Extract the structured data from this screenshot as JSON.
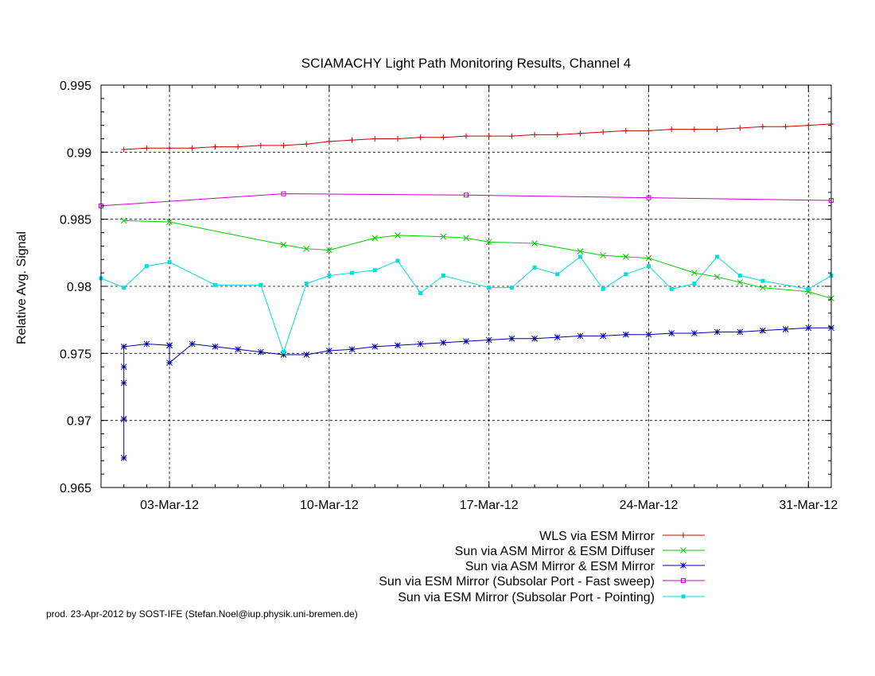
{
  "chart_data": {
    "type": "line",
    "title": "SCIAMACHY Light Path Monitoring Results, Channel 4",
    "xlabel": "",
    "ylabel": "Relative Avg. Signal",
    "xlim": [
      "2012-02-29",
      "2012-04-01"
    ],
    "ylim": [
      0.965,
      0.995
    ],
    "yticks": [
      "0.965",
      "0.97",
      "0.975",
      "0.98",
      "0.985",
      "0.99",
      "0.995"
    ],
    "xticks": [
      {
        "date": "2012-03-03",
        "label": "03-Mar-12"
      },
      {
        "date": "2012-03-10",
        "label": "10-Mar-12"
      },
      {
        "date": "2012-03-17",
        "label": "17-Mar-12"
      },
      {
        "date": "2012-03-24",
        "label": "24-Mar-12"
      },
      {
        "date": "2012-03-31",
        "label": "31-Mar-12"
      }
    ],
    "grid": true,
    "legend_position": "bottom-right",
    "series": [
      {
        "name": "WLS via ESM Mirror",
        "color": "#cc0000",
        "marker": "plus",
        "points": [
          [
            "2012-03-01",
            0.9902
          ],
          [
            "2012-03-02",
            0.9903
          ],
          [
            "2012-03-03",
            0.9903
          ],
          [
            "2012-03-04",
            0.9903
          ],
          [
            "2012-03-05",
            0.9904
          ],
          [
            "2012-03-06",
            0.9904
          ],
          [
            "2012-03-07",
            0.9905
          ],
          [
            "2012-03-08",
            0.9905
          ],
          [
            "2012-03-09",
            0.9906
          ],
          [
            "2012-03-10",
            0.9908
          ],
          [
            "2012-03-11",
            0.9909
          ],
          [
            "2012-03-12",
            0.991
          ],
          [
            "2012-03-13",
            0.991
          ],
          [
            "2012-03-14",
            0.9911
          ],
          [
            "2012-03-15",
            0.9911
          ],
          [
            "2012-03-16",
            0.9912
          ],
          [
            "2012-03-17",
            0.9912
          ],
          [
            "2012-03-18",
            0.9912
          ],
          [
            "2012-03-19",
            0.9913
          ],
          [
            "2012-03-20",
            0.9913
          ],
          [
            "2012-03-21",
            0.9914
          ],
          [
            "2012-03-22",
            0.9915
          ],
          [
            "2012-03-23",
            0.9916
          ],
          [
            "2012-03-24",
            0.9916
          ],
          [
            "2012-03-25",
            0.9917
          ],
          [
            "2012-03-26",
            0.9917
          ],
          [
            "2012-03-27",
            0.9917
          ],
          [
            "2012-03-28",
            0.9918
          ],
          [
            "2012-03-29",
            0.9919
          ],
          [
            "2012-03-30",
            0.9919
          ],
          [
            "2012-03-31",
            0.992
          ],
          [
            "2012-04-01",
            0.9921
          ]
        ]
      },
      {
        "name": "Sun via ASM Mirror & ESM Diffuser",
        "color": "#00cc00",
        "marker": "x",
        "points": [
          [
            "2012-03-01",
            0.9849
          ],
          [
            "2012-03-03",
            0.9848
          ],
          [
            "2012-03-08",
            0.9831
          ],
          [
            "2012-03-09",
            0.9828
          ],
          [
            "2012-03-10",
            0.9827
          ],
          [
            "2012-03-12",
            0.9836
          ],
          [
            "2012-03-13",
            0.9838
          ],
          [
            "2012-03-15",
            0.9837
          ],
          [
            "2012-03-16",
            0.9836
          ],
          [
            "2012-03-17",
            0.9833
          ],
          [
            "2012-03-19",
            0.9832
          ],
          [
            "2012-03-21",
            0.9826
          ],
          [
            "2012-03-22",
            0.9823
          ],
          [
            "2012-03-23",
            0.9822
          ],
          [
            "2012-03-24",
            0.9821
          ],
          [
            "2012-03-26",
            0.981
          ],
          [
            "2012-03-27",
            0.9807
          ],
          [
            "2012-03-28",
            0.9803
          ],
          [
            "2012-03-29",
            0.9799
          ],
          [
            "2012-03-31",
            0.9796
          ],
          [
            "2012-04-01",
            0.9791
          ]
        ]
      },
      {
        "name": "Sun via ASM Mirror & ESM Mirror",
        "color": "#0000aa",
        "marker": "star",
        "points": [
          [
            "2012-03-01",
            0.974
          ],
          [
            "2012-03-01",
            0.9728
          ],
          [
            "2012-03-01",
            0.9701
          ],
          [
            "2012-03-01",
            0.9672
          ],
          [
            "2012-03-01",
            0.9755
          ],
          [
            "2012-03-02",
            0.9757
          ],
          [
            "2012-03-03",
            0.9756
          ],
          [
            "2012-03-03",
            0.9756
          ],
          [
            "2012-03-03",
            0.9743
          ],
          [
            "2012-03-04",
            0.9757
          ],
          [
            "2012-03-05",
            0.9755
          ],
          [
            "2012-03-06",
            0.9753
          ],
          [
            "2012-03-07",
            0.9751
          ],
          [
            "2012-03-08",
            0.9749
          ],
          [
            "2012-03-09",
            0.9749
          ],
          [
            "2012-03-10",
            0.9752
          ],
          [
            "2012-03-11",
            0.9753
          ],
          [
            "2012-03-12",
            0.9755
          ],
          [
            "2012-03-13",
            0.9756
          ],
          [
            "2012-03-14",
            0.9757
          ],
          [
            "2012-03-15",
            0.9758
          ],
          [
            "2012-03-16",
            0.9759
          ],
          [
            "2012-03-17",
            0.976
          ],
          [
            "2012-03-18",
            0.9761
          ],
          [
            "2012-03-19",
            0.9761
          ],
          [
            "2012-03-20",
            0.9762
          ],
          [
            "2012-03-21",
            0.9763
          ],
          [
            "2012-03-22",
            0.9763
          ],
          [
            "2012-03-23",
            0.9764
          ],
          [
            "2012-03-24",
            0.9764
          ],
          [
            "2012-03-25",
            0.9765
          ],
          [
            "2012-03-26",
            0.9765
          ],
          [
            "2012-03-27",
            0.9766
          ],
          [
            "2012-03-28",
            0.9766
          ],
          [
            "2012-03-29",
            0.9767
          ],
          [
            "2012-03-30",
            0.9768
          ],
          [
            "2012-03-31",
            0.9769
          ],
          [
            "2012-04-01",
            0.9769
          ]
        ]
      },
      {
        "name": "Sun via ESM Mirror (Subsolar Port - Fast sweep)",
        "color": "#cc00cc",
        "marker": "square-open",
        "points": [
          [
            "2012-02-29",
            0.986
          ],
          [
            "2012-03-08",
            0.9869
          ],
          [
            "2012-03-16",
            0.9868
          ],
          [
            "2012-03-24",
            0.9866
          ],
          [
            "2012-04-01",
            0.9864
          ]
        ]
      },
      {
        "name": "Sun via ESM Mirror (Subsolar Port - Pointing)",
        "color": "#00dddd",
        "marker": "square-filled",
        "points": [
          [
            "2012-02-29",
            0.9806
          ],
          [
            "2012-03-01",
            0.9799
          ],
          [
            "2012-03-02",
            0.9815
          ],
          [
            "2012-03-03",
            0.9818
          ],
          [
            "2012-03-05",
            0.9801
          ],
          [
            "2012-03-07",
            0.9801
          ],
          [
            "2012-03-08",
            0.9751
          ],
          [
            "2012-03-09",
            0.9802
          ],
          [
            "2012-03-10",
            0.9808
          ],
          [
            "2012-03-11",
            0.981
          ],
          [
            "2012-03-12",
            0.9812
          ],
          [
            "2012-03-13",
            0.9819
          ],
          [
            "2012-03-14",
            0.9795
          ],
          [
            "2012-03-15",
            0.9808
          ],
          [
            "2012-03-17",
            0.9799
          ],
          [
            "2012-03-18",
            0.9799
          ],
          [
            "2012-03-19",
            0.9814
          ],
          [
            "2012-03-20",
            0.9809
          ],
          [
            "2012-03-21",
            0.9822
          ],
          [
            "2012-03-22",
            0.9798
          ],
          [
            "2012-03-23",
            0.9809
          ],
          [
            "2012-03-24",
            0.9815
          ],
          [
            "2012-03-25",
            0.9798
          ],
          [
            "2012-03-26",
            0.9802
          ],
          [
            "2012-03-27",
            0.9822
          ],
          [
            "2012-03-28",
            0.9808
          ],
          [
            "2012-03-29",
            0.9804
          ],
          [
            "2012-03-31",
            0.9798
          ],
          [
            "2012-04-01",
            0.9808
          ]
        ]
      }
    ]
  },
  "credit": "prod. 23-Apr-2012 by SOST-IFE (Stefan.Noel@iup.physik.uni-bremen.de)"
}
